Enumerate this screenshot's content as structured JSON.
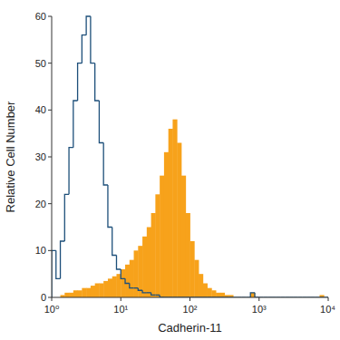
{
  "chart_data": {
    "type": "histogram",
    "xlabel": "Cadherin-11",
    "ylabel": "Relative Cell Number",
    "log": "x",
    "xlim": [
      1,
      10000
    ],
    "ylim": [
      0,
      60
    ],
    "xticks": [
      {
        "value": 1,
        "label": "10⁰"
      },
      {
        "value": 10,
        "label": "10¹"
      },
      {
        "value": 100,
        "label": "10²"
      },
      {
        "value": 1000,
        "label": "10³"
      },
      {
        "value": 10000,
        "label": "10⁴"
      }
    ],
    "yticks": [
      0,
      10,
      20,
      30,
      40,
      50,
      60
    ],
    "grid": false,
    "bins": [
      1,
      1.155,
      1.334,
      1.54,
      1.778,
      2.054,
      2.371,
      2.738,
      3.162,
      3.652,
      4.217,
      4.87,
      5.623,
      6.494,
      7.499,
      8.66,
      10,
      11.55,
      13.34,
      15.4,
      17.78,
      20.54,
      23.71,
      27.38,
      31.62,
      36.52,
      42.17,
      48.7,
      56.23,
      64.94,
      74.99,
      86.6,
      100,
      115.5,
      133.4,
      154,
      177.8,
      205.4,
      237.1,
      273.8,
      316.2,
      365.2,
      421.7,
      487,
      562.3,
      649.4,
      749.9,
      866,
      1000,
      1155,
      1334,
      1540,
      1778,
      2054,
      2371,
      2738,
      3162,
      3652,
      4217,
      4870,
      5623,
      6494,
      7499,
      8660,
      10000
    ],
    "series": [
      {
        "type": "step",
        "color": "#1d4f7a",
        "values": [
          10,
          4,
          12,
          22,
          32,
          42,
          50,
          56,
          60,
          50,
          42,
          33,
          24,
          15,
          9,
          6,
          4,
          3,
          2,
          2,
          1.5,
          1,
          1,
          0.5,
          0.5,
          0,
          0,
          0,
          0,
          0,
          0,
          0,
          0,
          0,
          0,
          0,
          0,
          0,
          0,
          0,
          0,
          0,
          0,
          0,
          0,
          0,
          1,
          0,
          0,
          0,
          0,
          0,
          0,
          0,
          0,
          0,
          0,
          0,
          0,
          0,
          0,
          0,
          0,
          0
        ]
      },
      {
        "type": "bar",
        "color": "#f7a21b",
        "values": [
          0,
          0,
          0.5,
          1,
          1,
          1.5,
          1.5,
          2,
          2,
          2.5,
          3,
          3,
          3.5,
          4,
          4.5,
          5,
          6,
          7,
          8,
          10,
          11,
          13,
          15,
          18,
          22,
          26,
          31,
          36,
          38,
          33,
          26,
          18,
          12,
          8,
          5,
          3,
          2,
          1.5,
          1,
          1,
          0.5,
          0.5,
          0,
          0,
          0,
          0,
          1,
          0,
          0,
          0,
          0,
          0,
          0,
          0,
          0,
          0,
          0,
          0,
          0,
          0,
          0,
          0,
          0.5,
          0
        ]
      }
    ]
  }
}
